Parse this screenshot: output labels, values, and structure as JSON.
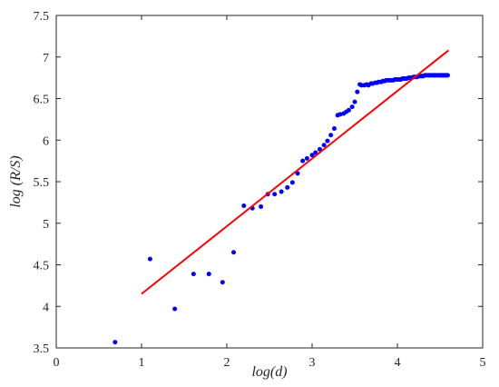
{
  "chart_data": {
    "type": "scatter",
    "title": "",
    "xlabel": "log(d)",
    "ylabel": "log (R/S)",
    "xlim": [
      0,
      5
    ],
    "ylim": [
      3.5,
      7.5
    ],
    "xticks": [
      "0",
      "1",
      "2",
      "3",
      "4",
      "5"
    ],
    "yticks": [
      "3.5",
      "4",
      "4.5",
      "5",
      "5.5",
      "6",
      "6.5",
      "7",
      "7.5"
    ],
    "grid": false,
    "legend": "none",
    "series": [
      {
        "kind": "points",
        "color": "#0000ff",
        "x": [
          0.69,
          1.1,
          1.39,
          1.61,
          1.79,
          1.95,
          2.08,
          2.2,
          2.3,
          2.4,
          2.48,
          2.56,
          2.64,
          2.71,
          2.77,
          2.83,
          2.89,
          2.94,
          3.0,
          3.04,
          3.09,
          3.14,
          3.18,
          3.22,
          3.26,
          3.3,
          3.33,
          3.37,
          3.4,
          3.43,
          3.47,
          3.5,
          3.53,
          3.56,
          3.58,
          3.61,
          3.64,
          3.66,
          3.69,
          3.71,
          3.74,
          3.76,
          3.78,
          3.81,
          3.83,
          3.85,
          3.87,
          3.89,
          3.91,
          3.93,
          3.95,
          3.97,
          3.99,
          4.01,
          4.03,
          4.04,
          4.06,
          4.08,
          4.09,
          4.11,
          4.13,
          4.14,
          4.16,
          4.17,
          4.19,
          4.2,
          4.22,
          4.23,
          4.25,
          4.26,
          4.28,
          4.29,
          4.3,
          4.32,
          4.33,
          4.34,
          4.36,
          4.37,
          4.38,
          4.39,
          4.41,
          4.42,
          4.43,
          4.44,
          4.45,
          4.47,
          4.48,
          4.49,
          4.5,
          4.51,
          4.52,
          4.53,
          4.54,
          4.55,
          4.56,
          4.57,
          4.58,
          4.59
        ],
        "y": [
          3.57,
          4.57,
          3.97,
          4.39,
          4.39,
          4.29,
          4.65,
          5.21,
          5.18,
          5.2,
          5.35,
          5.35,
          5.38,
          5.43,
          5.49,
          5.6,
          5.75,
          5.78,
          5.82,
          5.85,
          5.89,
          5.94,
          5.99,
          6.06,
          6.14,
          6.3,
          6.31,
          6.32,
          6.34,
          6.36,
          6.4,
          6.46,
          6.58,
          6.67,
          6.66,
          6.66,
          6.67,
          6.66,
          6.68,
          6.68,
          6.69,
          6.69,
          6.7,
          6.7,
          6.71,
          6.71,
          6.72,
          6.72,
          6.72,
          6.72,
          6.72,
          6.73,
          6.73,
          6.73,
          6.73,
          6.73,
          6.74,
          6.74,
          6.74,
          6.74,
          6.75,
          6.75,
          6.75,
          6.75,
          6.76,
          6.76,
          6.76,
          6.76,
          6.77,
          6.77,
          6.77,
          6.77,
          6.77,
          6.78,
          6.78,
          6.78,
          6.78,
          6.78,
          6.78,
          6.78,
          6.78,
          6.78,
          6.78,
          6.78,
          6.78,
          6.78,
          6.78,
          6.78,
          6.78,
          6.78,
          6.78,
          6.78,
          6.78,
          6.78,
          6.78,
          6.78,
          6.78,
          6.78
        ]
      },
      {
        "kind": "fit-line",
        "color": "#ff0000",
        "x": [
          1.0,
          4.6
        ],
        "y": [
          4.15,
          7.08
        ]
      }
    ]
  }
}
